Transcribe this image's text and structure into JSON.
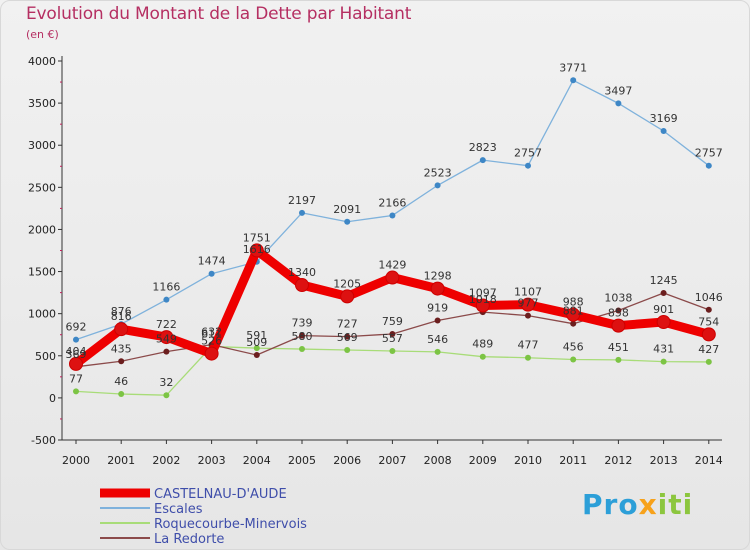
{
  "title": "Evolution du Montant de la Dette par Habitant",
  "unit": "(en €)",
  "logo": {
    "part1": "Pro",
    "part2": "x",
    "part3": "iti"
  },
  "chart_data": {
    "type": "line",
    "title": "Evolution du Montant de la Dette par Habitant",
    "ylabel": "(en €)",
    "xlabel": "",
    "ylim": [
      -500,
      4000
    ],
    "yticks": [
      -500,
      0,
      500,
      1000,
      1500,
      2000,
      2500,
      3000,
      3500,
      4000
    ],
    "categories": [
      "2000",
      "2001",
      "2002",
      "2003",
      "2004",
      "2005",
      "2006",
      "2007",
      "2008",
      "2009",
      "2010",
      "2011",
      "2012",
      "2013",
      "2014"
    ],
    "series": [
      {
        "name": "CASTELNAU-D'AUDE",
        "color": "#ee0000",
        "marker": "#dd1111",
        "emphasis": true,
        "values": [
          404,
          816,
          722,
          526,
          1751,
          1340,
          1205,
          1429,
          1298,
          1097,
          1107,
          988,
          858,
          901,
          754
        ],
        "labels": [
          "404",
          "816",
          "722",
          "526",
          "1751",
          "1340",
          "1205",
          "1429",
          "1298",
          "1097",
          "1107",
          "988",
          "858",
          "901",
          "754"
        ]
      },
      {
        "name": "Escales",
        "color": "#7fb2dc",
        "marker": "#3e87c6",
        "values": [
          692,
          876,
          1166,
          1474,
          1616,
          2197,
          2091,
          2166,
          2523,
          2823,
          2757,
          3771,
          3497,
          3169,
          2757
        ],
        "labels": [
          "692",
          "876",
          "1166",
          "1474",
          "1616",
          "2197",
          "2091",
          "2166",
          "2523",
          "2823",
          "2757",
          "3771",
          "3497",
          "3169",
          "2757"
        ]
      },
      {
        "name": "Roquecourbe-Minervois",
        "color": "#a8dc78",
        "marker": "#7cc444",
        "values": [
          77,
          46,
          32,
          611,
          591,
          580,
          569,
          557,
          546,
          489,
          477,
          456,
          451,
          431,
          427
        ],
        "labels": [
          "77",
          "46",
          "32",
          "611",
          "591",
          "580",
          "569",
          "557",
          "546",
          "489",
          "477",
          "456",
          "451",
          "431",
          "427"
        ]
      },
      {
        "name": "La Redorte",
        "color": "#8b4a4a",
        "marker": "#6b1e1e",
        "values": [
          369,
          435,
          549,
          632,
          509,
          739,
          727,
          759,
          919,
          1018,
          977,
          881,
          1038,
          1245,
          1046
        ],
        "labels": [
          "369",
          "435",
          "549",
          "632",
          "509",
          "739",
          "727",
          "759",
          "919",
          "1018",
          "977",
          "881",
          "1038",
          "1245",
          "1046"
        ]
      }
    ]
  }
}
